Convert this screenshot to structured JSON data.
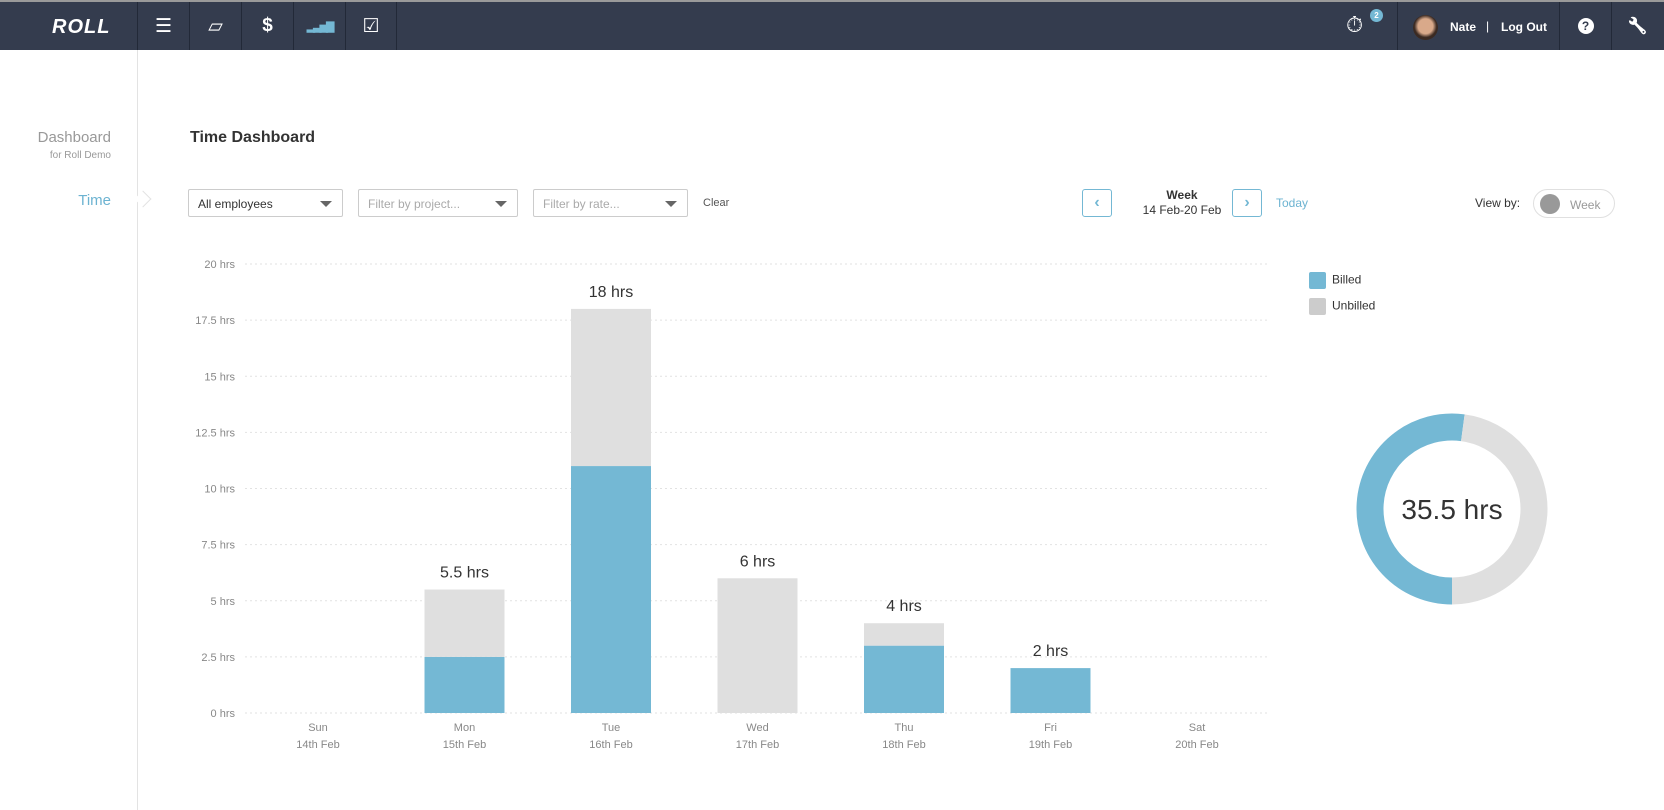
{
  "nav": {
    "logo": "ROLL",
    "items": [
      {
        "icon": "list-icon",
        "glyph": "☰"
      },
      {
        "icon": "book-icon",
        "glyph": "▱"
      },
      {
        "icon": "dollar-icon",
        "glyph": "$"
      },
      {
        "icon": "signal-bars-icon",
        "glyph": "▂▃▅▇"
      },
      {
        "icon": "checkbox-icon",
        "glyph": "☑"
      }
    ],
    "timer_badge": "2",
    "user_name": "Nate",
    "separator": "|",
    "logout": "Log Out",
    "help_glyph": "?",
    "settings_glyph": "🔧"
  },
  "sidebar": {
    "title": "Dashboard",
    "subtitle": "for Roll Demo",
    "active_item": "Time"
  },
  "main": {
    "title": "Time Dashboard",
    "filters": {
      "employees": "All employees",
      "project_placeholder": "Filter by project...",
      "rate_placeholder": "Filter by rate...",
      "clear": "Clear"
    },
    "period": {
      "label": "Week",
      "range": "14 Feb-20 Feb",
      "prev": "‹",
      "next": "›",
      "today": "Today"
    },
    "view_by": {
      "label": "View by:",
      "value": "Week"
    }
  },
  "colors": {
    "billed": "#74b8d4",
    "unbilled": "#dfdfdf",
    "accent": "#6cb3d1",
    "nav_bg": "#343c4e"
  },
  "chart_data": [
    {
      "type": "bar",
      "stacked": true,
      "categories": [
        "Sun",
        "Mon",
        "Tue",
        "Wed",
        "Thu",
        "Fri",
        "Sat"
      ],
      "category_dates": [
        "14th Feb",
        "15th Feb",
        "16th Feb",
        "17th Feb",
        "18th Feb",
        "19th Feb",
        "20th Feb"
      ],
      "series": [
        {
          "name": "Billed",
          "values": [
            0,
            2.5,
            11,
            0,
            3,
            2,
            0
          ]
        },
        {
          "name": "Unbilled",
          "values": [
            0,
            3,
            7,
            6,
            1,
            0,
            0
          ]
        }
      ],
      "data_labels": [
        "",
        "5.5 hrs",
        "18 hrs",
        "6 hrs",
        "4 hrs",
        "2 hrs",
        ""
      ],
      "y_ticks": [
        "0 hrs",
        "2.5 hrs",
        "5 hrs",
        "7.5 hrs",
        "10 hrs",
        "12.5 hrs",
        "15 hrs",
        "17.5 hrs",
        "20 hrs"
      ],
      "ylim": [
        0,
        20
      ],
      "grid": true,
      "legend": "top-right"
    },
    {
      "type": "pie",
      "donut": true,
      "slices": [
        {
          "name": "Billed",
          "value": 18.5
        },
        {
          "name": "Unbilled",
          "value": 17
        }
      ],
      "center_label": "35.5 hrs"
    }
  ]
}
